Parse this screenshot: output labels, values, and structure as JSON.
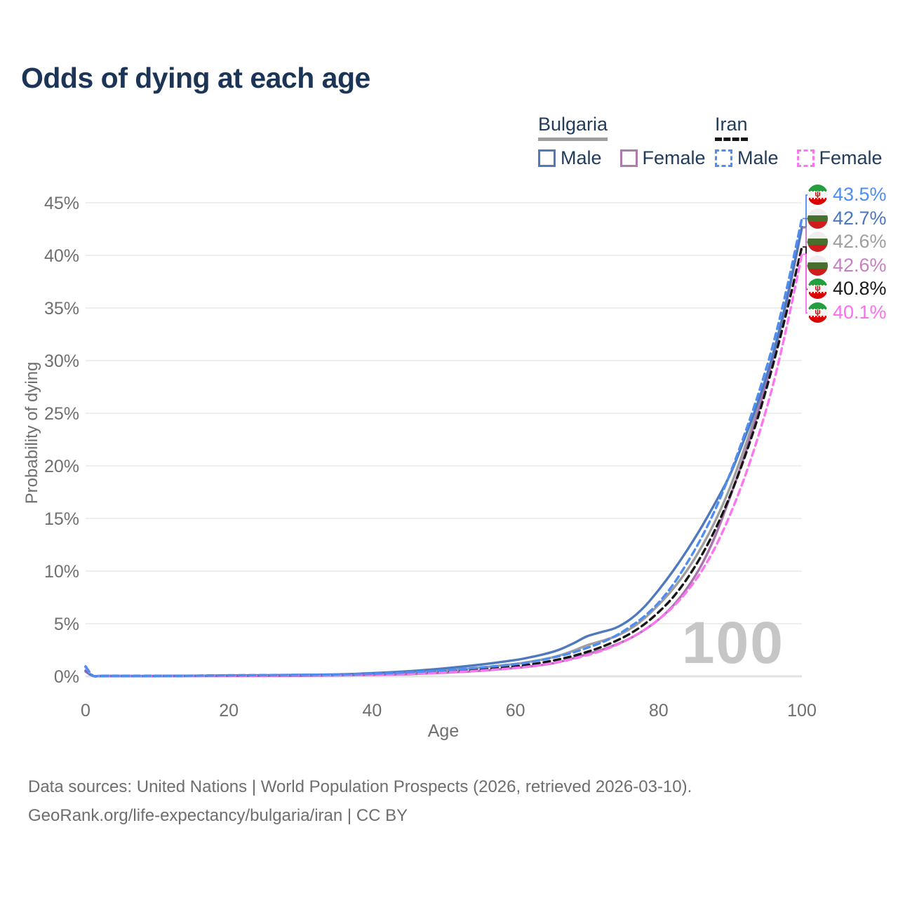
{
  "title": "Odds of dying at each age",
  "legend": {
    "groups": [
      {
        "name": "Bulgaria",
        "underline_style": "solid",
        "underline_color": "#9e9e9e",
        "items": [
          {
            "label": "Male",
            "color": "#4e79bd",
            "dashed": false
          },
          {
            "label": "Female",
            "color": "#b07ab0",
            "dashed": false
          }
        ]
      },
      {
        "name": "Iran",
        "underline_style": "dashed",
        "underline_color": "#161616",
        "items": [
          {
            "label": "Male",
            "color": "#4e8df2",
            "dashed": true
          },
          {
            "label": "Female",
            "color": "#fc74f0",
            "dashed": true
          }
        ]
      }
    ]
  },
  "flags": {
    "bulgaria": {
      "stripes": [
        "#efefef",
        "#486f2d",
        "#d01c1f"
      ],
      "emblem": ""
    },
    "iran": {
      "stripes": [
        "#239f40",
        "#f4f4f4",
        "#da0000"
      ],
      "emblem": "ψ"
    }
  },
  "chart_data": {
    "type": "line",
    "title": "Odds of dying at each age",
    "xlabel": "Age",
    "ylabel": "Probability of dying",
    "xlim": [
      0,
      100
    ],
    "ylim": [
      0,
      45
    ],
    "xticks": [
      0,
      20,
      40,
      60,
      80,
      100
    ],
    "yticks": [
      0,
      5,
      10,
      15,
      20,
      25,
      30,
      35,
      40,
      45
    ],
    "ytick_suffix": "%",
    "grid": "horizontal",
    "legend_position": "top-right",
    "age_watermark": "100",
    "x": [
      0,
      1,
      2,
      3,
      5,
      10,
      15,
      20,
      25,
      30,
      35,
      40,
      45,
      50,
      55,
      60,
      62,
      64,
      66,
      68,
      70,
      72,
      74,
      76,
      78,
      80,
      82,
      84,
      86,
      88,
      90,
      92,
      94,
      96,
      98,
      100
    ],
    "series": [
      {
        "id": "bulgaria-total",
        "name": "Bulgaria (both sexes)",
        "color": "#9e9e9e",
        "dashed": false,
        "values": [
          0.5,
          0.045,
          0.025,
          0.025,
          0.025,
          0.025,
          0.04,
          0.06,
          0.07,
          0.09,
          0.13,
          0.22,
          0.35,
          0.55,
          0.82,
          1.18,
          1.38,
          1.62,
          1.95,
          2.4,
          2.95,
          3.35,
          3.8,
          4.5,
          5.5,
          6.8,
          8.3,
          10.1,
          12.3,
          14.9,
          18.0,
          21.7,
          25.8,
          30.5,
          36.1,
          42.6
        ]
      },
      {
        "id": "bulgaria-female",
        "name": "Bulgaria Female",
        "color": "#a873ae",
        "dashed": false,
        "values": [
          0.45,
          0.04,
          0.02,
          0.02,
          0.02,
          0.02,
          0.03,
          0.03,
          0.04,
          0.05,
          0.08,
          0.13,
          0.21,
          0.34,
          0.52,
          0.8,
          0.93,
          1.1,
          1.35,
          1.7,
          2.1,
          2.5,
          3.0,
          3.6,
          4.4,
          5.4,
          6.7,
          8.4,
          10.6,
          13.5,
          17.1,
          21.0,
          25.4,
          30.3,
          36.0,
          42.6
        ]
      },
      {
        "id": "bulgaria-male",
        "name": "Bulgaria Male",
        "color": "#4e79bd",
        "dashed": false,
        "values": [
          0.55,
          0.05,
          0.03,
          0.03,
          0.03,
          0.03,
          0.05,
          0.08,
          0.1,
          0.13,
          0.18,
          0.3,
          0.48,
          0.75,
          1.1,
          1.55,
          1.8,
          2.1,
          2.5,
          3.1,
          3.8,
          4.2,
          4.6,
          5.4,
          6.6,
          8.2,
          10.0,
          12.0,
          14.2,
          16.6,
          19.2,
          22.6,
          26.3,
          30.7,
          36.2,
          42.7
        ]
      },
      {
        "id": "iran-total",
        "name": "Iran (both sexes)",
        "color": "#161616",
        "dashed": true,
        "values": [
          0.9,
          0.065,
          0.045,
          0.035,
          0.035,
          0.035,
          0.05,
          0.08,
          0.09,
          0.11,
          0.14,
          0.19,
          0.29,
          0.44,
          0.65,
          0.95,
          1.12,
          1.33,
          1.6,
          1.92,
          2.32,
          2.78,
          3.35,
          4.05,
          4.95,
          6.1,
          7.5,
          9.3,
          11.5,
          14.1,
          17.2,
          20.8,
          24.9,
          29.7,
          35.0,
          40.8
        ]
      },
      {
        "id": "iran-female",
        "name": "Iran Female",
        "color": "#fc74f0",
        "dashed": true,
        "values": [
          0.85,
          0.06,
          0.04,
          0.03,
          0.03,
          0.03,
          0.04,
          0.06,
          0.07,
          0.09,
          0.11,
          0.15,
          0.23,
          0.36,
          0.54,
          0.8,
          0.94,
          1.12,
          1.36,
          1.65,
          2.0,
          2.42,
          2.95,
          3.6,
          4.4,
          5.4,
          6.6,
          8.1,
          10.0,
          12.4,
          15.4,
          18.9,
          23.0,
          27.8,
          33.6,
          40.1
        ]
      },
      {
        "id": "iran-male",
        "name": "Iran Male",
        "color": "#4e8df2",
        "dashed": true,
        "values": [
          0.95,
          0.07,
          0.05,
          0.04,
          0.04,
          0.04,
          0.06,
          0.1,
          0.12,
          0.14,
          0.18,
          0.25,
          0.38,
          0.56,
          0.82,
          1.15,
          1.35,
          1.6,
          1.9,
          2.25,
          2.7,
          3.2,
          3.85,
          4.7,
          5.7,
          7.0,
          8.7,
          10.8,
          13.2,
          16.0,
          19.3,
          23.0,
          27.0,
          31.6,
          37.2,
          43.5
        ]
      }
    ],
    "end_labels": [
      {
        "value": "43.5%",
        "curve_end": 43.5,
        "color": "#4e8df2",
        "country": "iran"
      },
      {
        "value": "42.7%",
        "curve_end": 42.7,
        "color": "#4a77bd",
        "country": "bulgaria"
      },
      {
        "value": "42.6%",
        "curve_end": 42.6,
        "color": "#9e9e9e",
        "country": "bulgaria"
      },
      {
        "value": "42.6%",
        "curve_end": 42.6,
        "color": "#c77fc4",
        "country": "bulgaria"
      },
      {
        "value": "40.8%",
        "curve_end": 40.8,
        "color": "#1a1a1a",
        "country": "iran"
      },
      {
        "value": "40.1%",
        "curve_end": 40.1,
        "color": "#fc6ef0",
        "country": "iran"
      }
    ]
  },
  "footer": {
    "line1": "Data sources: United Nations | World Population Prospects (2026, retrieved 2026-03-10).",
    "line2": "GeoRank.org/life-expectancy/bulgaria/iran | CC BY"
  }
}
